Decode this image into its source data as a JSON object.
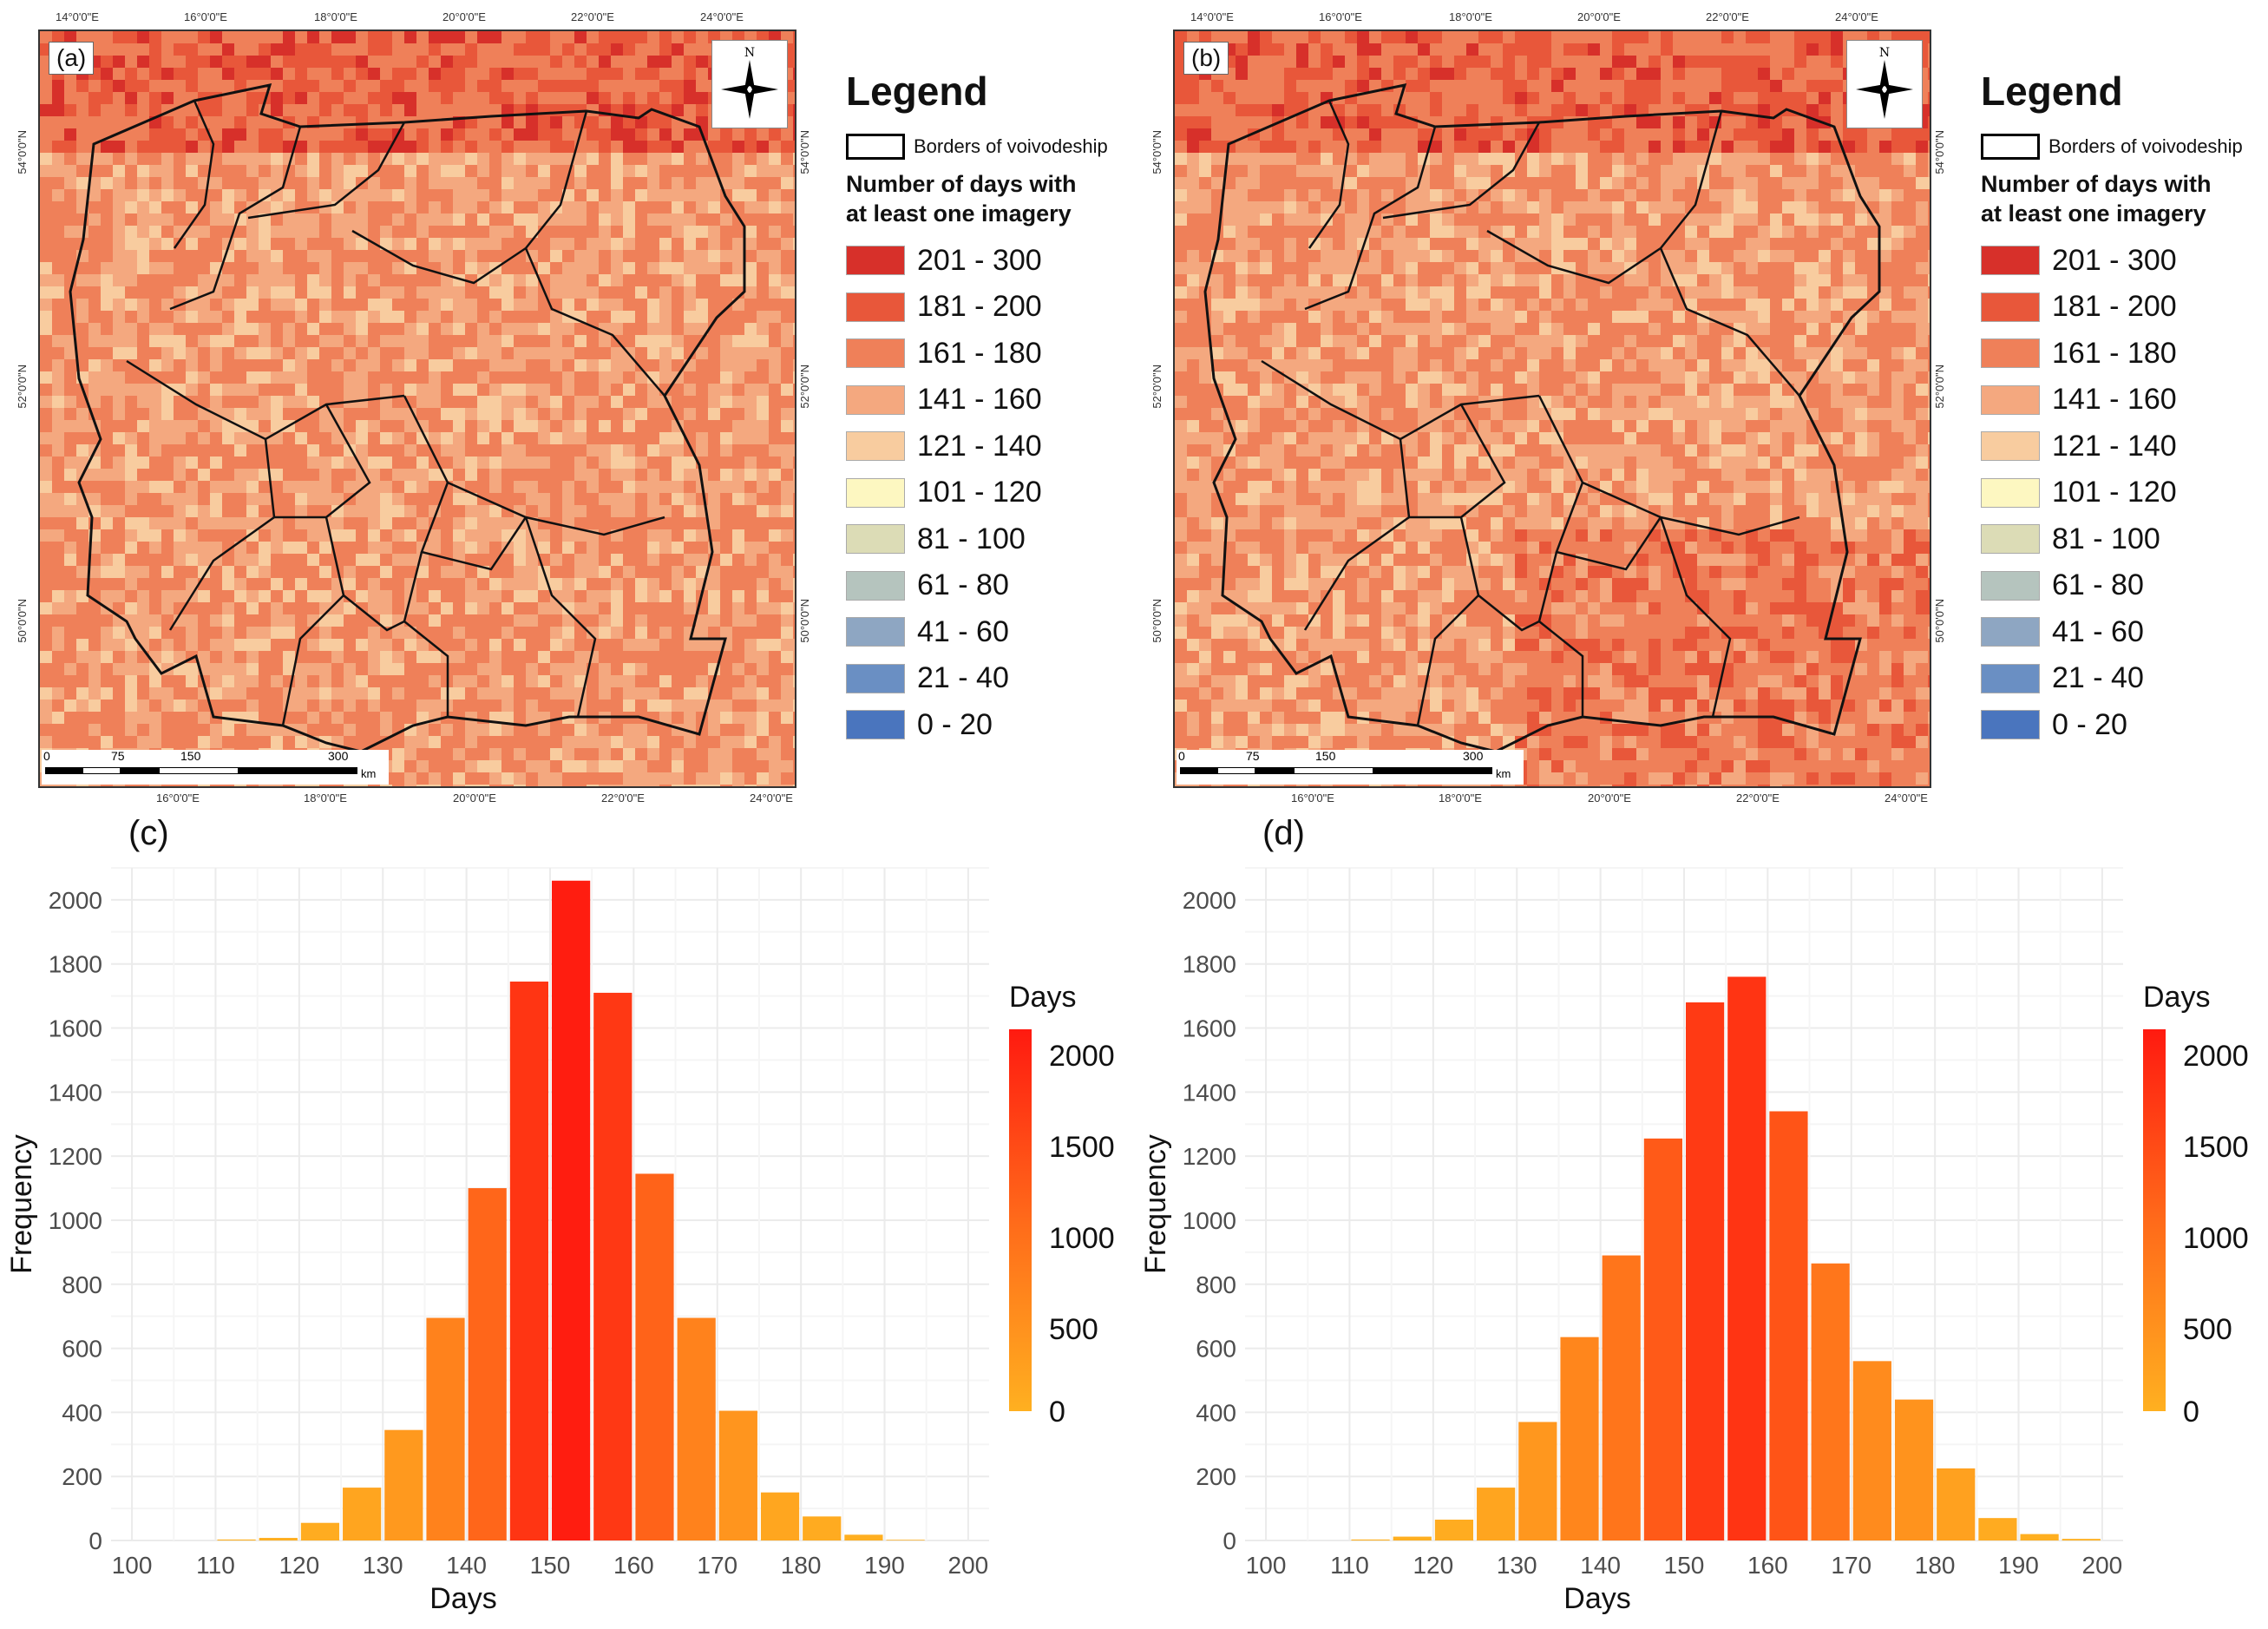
{
  "maps": [
    {
      "tag": "(a)",
      "legend": {
        "title": "Legend",
        "border_label": "Borders of voivodeship",
        "subtitle_line1": "Number of days with",
        "subtitle_line2": "at least one imagery",
        "classes": [
          {
            "label": "201 - 300",
            "color": "#d7302a"
          },
          {
            "label": "181 - 200",
            "color": "#e8573a"
          },
          {
            "label": "161 - 180",
            "color": "#ef8059"
          },
          {
            "label": "141 - 160",
            "color": "#f4a87f"
          },
          {
            "label": "121 - 140",
            "color": "#f8cc9f"
          },
          {
            "label": "101 - 120",
            "color": "#fdf7c1"
          },
          {
            "label": "81 - 100",
            "color": "#dcdcb6"
          },
          {
            "label": "61 - 80",
            "color": "#b5c4be"
          },
          {
            "label": "41 - 60",
            "color": "#8ea6c2"
          },
          {
            "label": "21 - 40",
            "color": "#6a8fc3"
          },
          {
            "label": "0 - 20",
            "color": "#4a75be"
          }
        ]
      },
      "north_label": "N",
      "scale": {
        "labels": [
          "0",
          "75",
          "150",
          "300"
        ],
        "unit": "km"
      },
      "top_ticks": [
        "14°0'0\"E",
        "16°0'0\"E",
        "18°0'0\"E",
        "20°0'0\"E",
        "22°0'0\"E",
        "24°0'0\"E"
      ],
      "bottom_ticks": [
        "16°0'0\"E",
        "18°0'0\"E",
        "20°0'0\"E",
        "22°0'0\"E",
        "24°0'0\"E"
      ],
      "side_ticks": [
        "54°0'0\"N",
        "52°0'0\"N",
        "50°0'0\"N"
      ]
    },
    {
      "tag": "(b)",
      "legend": {
        "title": "Legend",
        "border_label": "Borders of voivodeship",
        "subtitle_line1": "Number of days with",
        "subtitle_line2": "at least one imagery",
        "classes": [
          {
            "label": "201 - 300",
            "color": "#d7302a"
          },
          {
            "label": "181 - 200",
            "color": "#e8573a"
          },
          {
            "label": "161 - 180",
            "color": "#ef8059"
          },
          {
            "label": "141 - 160",
            "color": "#f4a87f"
          },
          {
            "label": "121 - 140",
            "color": "#f8cc9f"
          },
          {
            "label": "101 - 120",
            "color": "#fdf7c1"
          },
          {
            "label": "81 - 100",
            "color": "#dcdcb6"
          },
          {
            "label": "61 - 80",
            "color": "#b5c4be"
          },
          {
            "label": "41 - 60",
            "color": "#8ea6c2"
          },
          {
            "label": "21 - 40",
            "color": "#6a8fc3"
          },
          {
            "label": "0 - 20",
            "color": "#4a75be"
          }
        ]
      },
      "north_label": "N",
      "scale": {
        "labels": [
          "0",
          "75",
          "150",
          "300"
        ],
        "unit": "km"
      },
      "top_ticks": [
        "14°0'0\"E",
        "16°0'0\"E",
        "18°0'0\"E",
        "20°0'0\"E",
        "22°0'0\"E",
        "24°0'0\"E"
      ],
      "bottom_ticks": [
        "16°0'0\"E",
        "18°0'0\"E",
        "20°0'0\"E",
        "22°0'0\"E",
        "24°0'0\"E"
      ],
      "side_ticks": [
        "54°0'0\"N",
        "52°0'0\"N",
        "50°0'0\"N"
      ]
    }
  ],
  "chart_data": [
    {
      "type": "bar",
      "tag": "(c)",
      "xlabel": "Days",
      "ylabel": "Frequency",
      "xlim": [
        97.5,
        202.5
      ],
      "ylim": [
        0,
        2100
      ],
      "x_ticks": [
        100,
        110,
        120,
        130,
        140,
        150,
        160,
        170,
        180,
        190,
        200
      ],
      "y_ticks": [
        0,
        200,
        400,
        600,
        800,
        1000,
        1200,
        1400,
        1600,
        1800,
        2000
      ],
      "bin_width": 5,
      "bin_centers": [
        102.5,
        107.5,
        112.5,
        117.5,
        122.5,
        127.5,
        132.5,
        137.5,
        142.5,
        147.5,
        152.5,
        157.5,
        162.5,
        167.5,
        172.5,
        177.5,
        182.5,
        187.5,
        192.5,
        197.5
      ],
      "values": [
        0,
        0,
        3,
        8,
        55,
        165,
        345,
        695,
        1100,
        1745,
        2060,
        1710,
        1145,
        695,
        405,
        150,
        75,
        18,
        2,
        0
      ],
      "color_legend": {
        "title": "Days",
        "ticks": [
          "2000",
          "1500",
          "1000",
          "500",
          "0"
        ],
        "range": [
          0,
          2100
        ]
      }
    },
    {
      "type": "bar",
      "tag": "(d)",
      "xlabel": "Days",
      "ylabel": "Frequency",
      "xlim": [
        97.5,
        202.5
      ],
      "ylim": [
        0,
        2100
      ],
      "x_ticks": [
        100,
        110,
        120,
        130,
        140,
        150,
        160,
        170,
        180,
        190,
        200
      ],
      "y_ticks": [
        0,
        200,
        400,
        600,
        800,
        1000,
        1200,
        1400,
        1600,
        1800,
        2000
      ],
      "bin_width": 5,
      "bin_centers": [
        102.5,
        107.5,
        112.5,
        117.5,
        122.5,
        127.5,
        132.5,
        137.5,
        142.5,
        147.5,
        152.5,
        157.5,
        162.5,
        167.5,
        172.5,
        177.5,
        182.5,
        187.5,
        192.5,
        197.5
      ],
      "values": [
        0,
        0,
        3,
        12,
        65,
        165,
        370,
        635,
        890,
        1255,
        1680,
        1760,
        1340,
        865,
        560,
        440,
        225,
        70,
        20,
        5
      ],
      "color_legend": {
        "title": "Days",
        "ticks": [
          "2000",
          "1500",
          "1000",
          "500",
          "0"
        ],
        "range": [
          0,
          2100
        ]
      }
    }
  ]
}
